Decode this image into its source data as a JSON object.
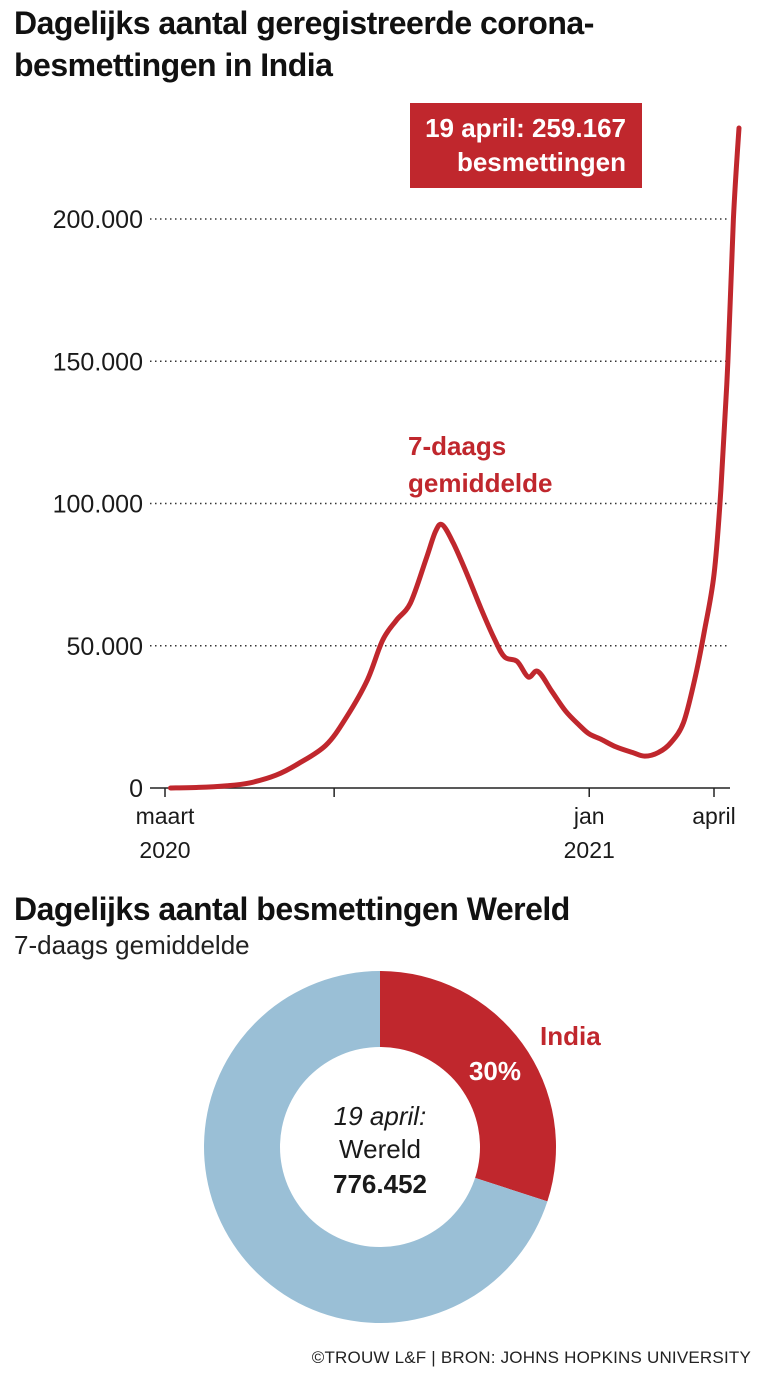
{
  "chart_data": [
    {
      "type": "line",
      "title": "Dagelijks aantal geregistreerde corona-besmettingen in India",
      "ylim": [
        0,
        200000
      ],
      "yticks": [
        {
          "value": 0,
          "label": "0"
        },
        {
          "value": 50000,
          "label": "50.000"
        },
        {
          "value": 100000,
          "label": "100.000"
        },
        {
          "value": 150000,
          "label": "150.000"
        },
        {
          "value": 200000,
          "label": "200.000"
        }
      ],
      "xlim": [
        "2020-03-01",
        "2021-04-25"
      ],
      "xticks": [
        {
          "date": "2020-03-01",
          "label": [
            "maart",
            "2020"
          ]
        },
        {
          "date": "2020-07-01",
          "label": [
            "",
            ""
          ]
        },
        {
          "date": "2021-01-01",
          "label": [
            "jan",
            "2021"
          ]
        },
        {
          "date": "2021-04-01",
          "label": [
            "april",
            ""
          ]
        }
      ],
      "grid": "horizontal-dotted",
      "series": [
        {
          "name": "7-daags gemiddelde",
          "color": "#c0272d",
          "points": [
            [
              "2020-03-05",
              0
            ],
            [
              "2020-03-25",
              200
            ],
            [
              "2020-04-15",
              800
            ],
            [
              "2020-05-01",
              1800
            ],
            [
              "2020-05-20",
              4500
            ],
            [
              "2020-06-05",
              8500
            ],
            [
              "2020-06-25",
              15000
            ],
            [
              "2020-07-10",
              25000
            ],
            [
              "2020-07-25",
              38000
            ],
            [
              "2020-08-05",
              52000
            ],
            [
              "2020-08-15",
              59000
            ],
            [
              "2020-08-25",
              65000
            ],
            [
              "2020-09-05",
              80000
            ],
            [
              "2020-09-12",
              90000
            ],
            [
              "2020-09-17",
              92500
            ],
            [
              "2020-09-25",
              86000
            ],
            [
              "2020-10-05",
              75000
            ],
            [
              "2020-10-15",
              63000
            ],
            [
              "2020-10-25",
              52000
            ],
            [
              "2020-11-01",
              46000
            ],
            [
              "2020-11-10",
              44500
            ],
            [
              "2020-11-18",
              39000
            ],
            [
              "2020-11-25",
              41000
            ],
            [
              "2020-12-05",
              34000
            ],
            [
              "2020-12-15",
              27000
            ],
            [
              "2020-12-25",
              22000
            ],
            [
              "2021-01-01",
              19000
            ],
            [
              "2021-01-10",
              17000
            ],
            [
              "2021-01-20",
              14500
            ],
            [
              "2021-02-01",
              12500
            ],
            [
              "2021-02-10",
              11200
            ],
            [
              "2021-02-20",
              12500
            ],
            [
              "2021-03-01",
              16000
            ],
            [
              "2021-03-10",
              23000
            ],
            [
              "2021-03-18",
              38000
            ],
            [
              "2021-03-25",
              55000
            ],
            [
              "2021-04-01",
              75000
            ],
            [
              "2021-04-06",
              105000
            ],
            [
              "2021-04-11",
              150000
            ],
            [
              "2021-04-15",
              200000
            ],
            [
              "2021-04-19",
              232000
            ]
          ]
        }
      ],
      "annotations": [
        {
          "label": [
            "19 april: 259.167",
            "besmettingen"
          ],
          "color": "#c0272d"
        }
      ]
    },
    {
      "type": "pie",
      "title": "Dagelijks aantal besmettingen Wereld",
      "subtitle": "7-daags gemiddelde",
      "slices": [
        {
          "name": "India",
          "value": 30,
          "label": "30%",
          "color": "#c0272d"
        },
        {
          "name": "",
          "value": 70,
          "label": "",
          "color": "#9abfd6"
        }
      ],
      "center": {
        "line1": "19 april:",
        "line2": "Wereld",
        "line3": "776.452"
      }
    }
  ],
  "footer": "©TROUW L&F | BRON: JOHNS HOPKINS UNIVERSITY"
}
